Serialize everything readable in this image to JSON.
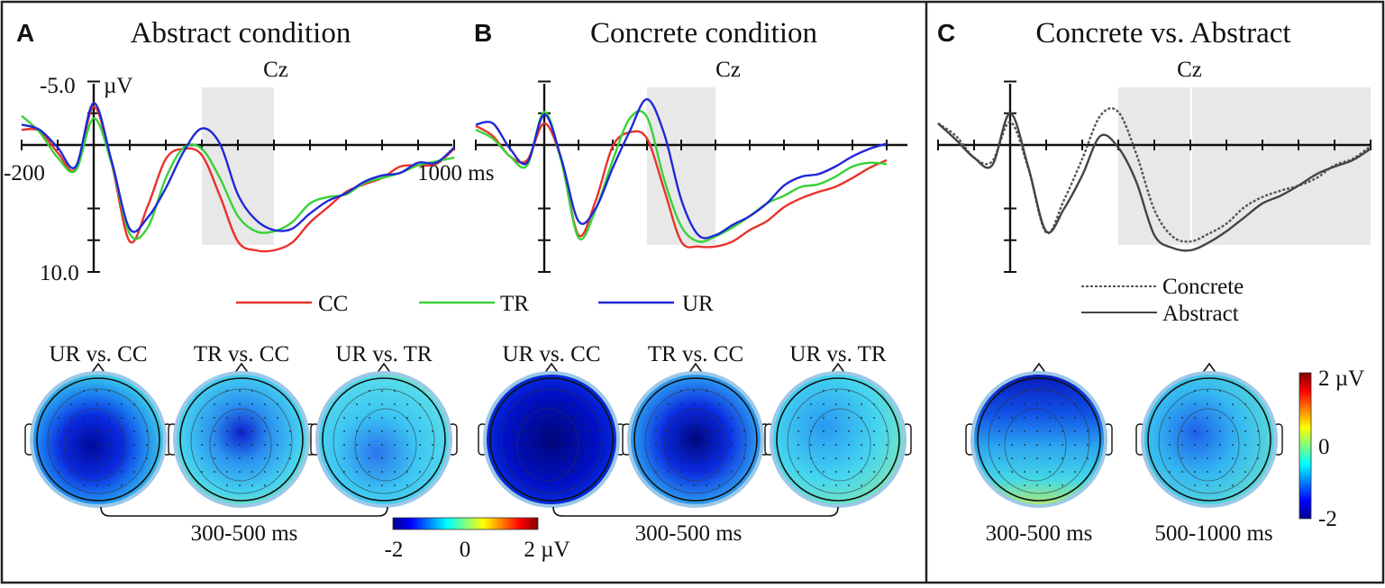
{
  "colors": {
    "CC": "#e8322b",
    "TR": "#38d138",
    "UR": "#1f28d6",
    "concrete": "#555555",
    "abstract": "#444444",
    "shade": "#e8e8e8",
    "border": "#222222"
  },
  "panels": {
    "A": {
      "letter": "A",
      "title": "Abstract condition",
      "electrode": "Cz"
    },
    "B": {
      "letter": "B",
      "title": "Concrete condition",
      "electrode": "Cz"
    },
    "C": {
      "letter": "C",
      "title": "Concrete vs. Abstract",
      "electrode": "Cz"
    }
  },
  "axis": {
    "y_top_label": "-5.0",
    "y_unit": "µV",
    "y_bottom_label": "10.0",
    "x_start_label": "-200",
    "x_end_label": "1000 ms"
  },
  "legend_ab": [
    {
      "key": "CC",
      "label": "CC"
    },
    {
      "key": "TR",
      "label": "TR"
    },
    {
      "key": "UR",
      "label": "UR"
    }
  ],
  "legend_c": [
    {
      "key": "concrete",
      "label": "Concrete",
      "dash": true
    },
    {
      "key": "abstract",
      "label": "Abstract",
      "dash": false
    }
  ],
  "topo_titles_ab": [
    "UR vs. CC",
    "TR vs. CC",
    "UR vs. TR"
  ],
  "window_ab": "300-500 ms",
  "windows_c": [
    "300-500 ms",
    "500-1000 ms"
  ],
  "colorbar_h": {
    "min": "-2",
    "mid": "0",
    "max": "2 µV"
  },
  "colorbar_v": {
    "min": "-2",
    "mid": "0",
    "max": "2 µV"
  },
  "chart_data": [
    {
      "type": "line",
      "panel": "A",
      "title": "Abstract condition",
      "electrode": "Cz",
      "xlabel": "ms",
      "ylabel": "µV",
      "xlim": [
        -200,
        1000
      ],
      "ylim": [
        -5.0,
        10.0
      ],
      "y_inverted": true,
      "highlight_window_ms": [
        300,
        500
      ],
      "x": [
        -200,
        -150,
        -100,
        -50,
        0,
        50,
        100,
        150,
        200,
        250,
        300,
        350,
        400,
        450,
        500,
        550,
        600,
        650,
        700,
        750,
        800,
        850,
        900,
        950,
        1000
      ],
      "series": [
        {
          "name": "CC",
          "values": [
            -1.2,
            -1.1,
            0.6,
            1.9,
            -3.0,
            1.5,
            7.6,
            4.8,
            1.1,
            0.3,
            0.8,
            4.0,
            7.6,
            8.3,
            8.3,
            7.7,
            6.1,
            4.9,
            3.7,
            3.1,
            2.6,
            1.7,
            1.6,
            1.5,
            0.3
          ]
        },
        {
          "name": "TR",
          "values": [
            -2.3,
            -1.0,
            1.0,
            2.0,
            -2.1,
            1.5,
            7.0,
            6.5,
            2.6,
            0.2,
            0.3,
            2.6,
            5.6,
            6.8,
            6.8,
            6.1,
            4.6,
            4.1,
            3.9,
            3.0,
            2.6,
            2.2,
            1.6,
            1.3,
            1.0
          ]
        },
        {
          "name": "UR",
          "values": [
            -1.6,
            -1.2,
            0.2,
            1.7,
            -3.3,
            1.3,
            6.6,
            5.7,
            3.4,
            0.5,
            -1.3,
            -0.1,
            3.9,
            5.9,
            6.7,
            6.6,
            5.4,
            4.4,
            3.8,
            2.9,
            2.4,
            2.2,
            1.4,
            1.4,
            0.2
          ]
        }
      ]
    },
    {
      "type": "line",
      "panel": "B",
      "title": "Concrete condition",
      "electrode": "Cz",
      "xlabel": "ms",
      "ylabel": "µV",
      "xlim": [
        -200,
        1000
      ],
      "ylim": [
        -5.0,
        10.0
      ],
      "y_inverted": true,
      "highlight_window_ms": [
        300,
        500
      ],
      "x": [
        -200,
        -150,
        -100,
        -50,
        0,
        50,
        100,
        150,
        200,
        250,
        300,
        350,
        400,
        450,
        500,
        550,
        600,
        650,
        700,
        750,
        800,
        850,
        900,
        950,
        1000
      ],
      "series": [
        {
          "name": "CC",
          "values": [
            -1.5,
            -0.7,
            0.9,
            1.2,
            -1.7,
            1.2,
            7.1,
            4.4,
            0.1,
            -1.0,
            -0.5,
            3.5,
            7.6,
            8.0,
            8.0,
            7.6,
            6.7,
            6.0,
            4.9,
            4.2,
            3.7,
            3.3,
            2.6,
            1.8,
            1.2
          ]
        },
        {
          "name": "TR",
          "values": [
            -1.2,
            -0.5,
            0.9,
            1.6,
            -2.6,
            1.3,
            7.3,
            5.1,
            1.2,
            -2.1,
            -2.2,
            2.7,
            6.4,
            7.6,
            7.2,
            6.5,
            5.6,
            4.6,
            4.0,
            3.3,
            3.1,
            2.5,
            1.7,
            1.4,
            1.5
          ]
        },
        {
          "name": "UR",
          "values": [
            -1.6,
            -1.7,
            0.3,
            1.4,
            -2.4,
            1.1,
            6.0,
            5.0,
            1.8,
            -1.1,
            -3.6,
            -0.9,
            4.3,
            7.1,
            7.1,
            6.3,
            5.6,
            4.6,
            3.2,
            2.5,
            2.3,
            1.7,
            0.9,
            0.3,
            -0.1
          ]
        }
      ]
    },
    {
      "type": "line",
      "panel": "C",
      "title": "Concrete vs. Abstract",
      "electrode": "Cz",
      "xlabel": "ms",
      "ylabel": "µV",
      "xlim": [
        -200,
        1000
      ],
      "ylim": [
        -5.0,
        10.0
      ],
      "y_inverted": true,
      "highlight_windows_ms": [
        [
          300,
          500
        ],
        [
          500,
          1000
        ]
      ],
      "x": [
        -200,
        -150,
        -100,
        -50,
        0,
        50,
        100,
        150,
        200,
        250,
        300,
        350,
        400,
        450,
        500,
        550,
        600,
        650,
        700,
        750,
        800,
        850,
        900,
        950,
        1000
      ],
      "series": [
        {
          "name": "Concrete",
          "dash": true,
          "values": [
            -1.7,
            -0.7,
            1.0,
            1.3,
            -1.8,
            1.8,
            6.9,
            4.3,
            1.1,
            -2.3,
            -2.6,
            0.7,
            5.1,
            7.2,
            7.6,
            7.0,
            6.2,
            4.9,
            4.1,
            3.6,
            3.2,
            2.6,
            1.6,
            1.1,
            0.1
          ]
        },
        {
          "name": "Abstract",
          "dash": false,
          "values": [
            -1.7,
            -0.4,
            1.0,
            1.6,
            -2.5,
            1.7,
            6.8,
            5.0,
            2.4,
            -0.7,
            0.2,
            2.9,
            7.1,
            8.1,
            8.3,
            7.7,
            6.8,
            5.7,
            4.6,
            4.0,
            3.2,
            2.3,
            1.7,
            1.2,
            0.3
          ]
        }
      ]
    }
  ]
}
